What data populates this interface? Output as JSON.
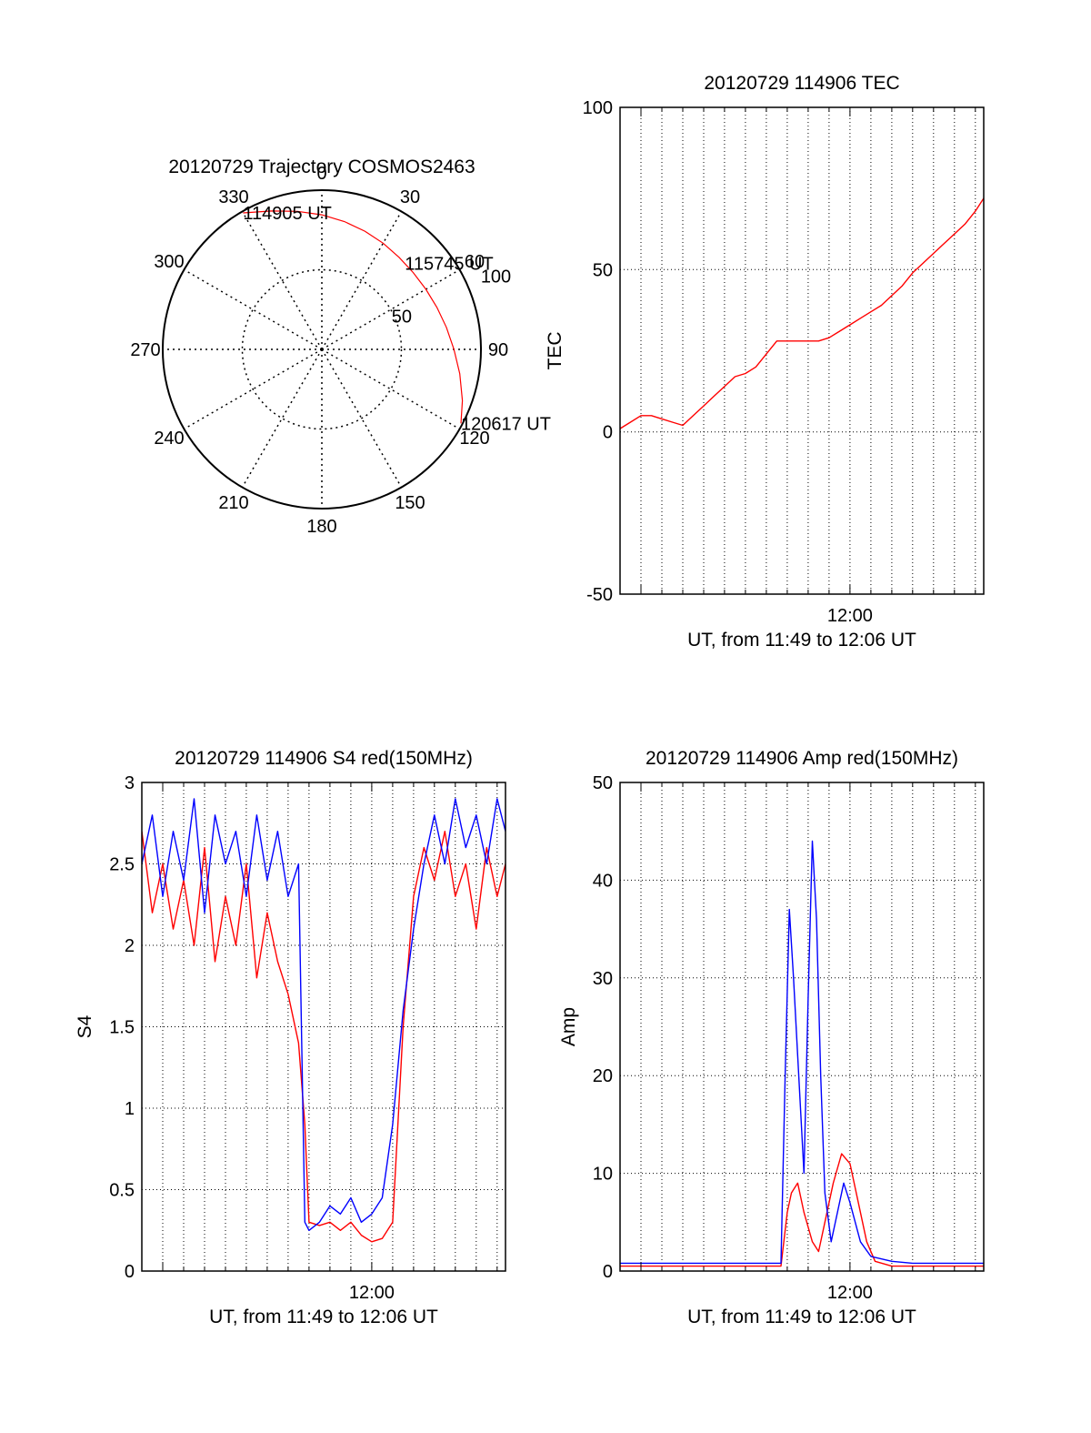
{
  "colors": {
    "red_series": "#ff0000",
    "blue_series": "#0000ff",
    "axes": "#000000",
    "grid": "#000000"
  },
  "chart_data": [
    {
      "id": "polar",
      "type": "scatter",
      "subtype": "polar-trajectory",
      "title": "20120729 Trajectory COSMOS2463",
      "azimuth_labels": [
        "0",
        "30",
        "60",
        "90",
        "120",
        "150",
        "180",
        "210",
        "240",
        "270",
        "300",
        "330"
      ],
      "radius_labels": [
        "50",
        "100"
      ],
      "radius_range": [
        0,
        100
      ],
      "track": {
        "azimuth_deg": [
          -30,
          -20,
          -10,
          0,
          10,
          20,
          30,
          40,
          50,
          60,
          70,
          80,
          90,
          100,
          110,
          118
        ],
        "zenith_deg": [
          99,
          92.5,
          88,
          84.5,
          81.5,
          79,
          77,
          75.5,
          75,
          75.5,
          77,
          79.5,
          83,
          88,
          94,
          99
        ]
      },
      "annotations": [
        {
          "text": "114905 UT",
          "azimuth_deg": -30,
          "zenith_deg": 99
        },
        {
          "text": "115745 UT",
          "azimuth_deg": 44,
          "zenith_deg": 75
        },
        {
          "text": "120617 UT",
          "azimuth_deg": 118,
          "zenith_deg": 99
        }
      ],
      "grid": true
    },
    {
      "id": "tec",
      "type": "line",
      "title": "20120729 114906 TEC",
      "xlabel": "UT, from 11:49 to 12:06 UT",
      "ylabel": "TEC",
      "xlim": [
        709,
        726.4
      ],
      "ylim": [
        -50,
        100
      ],
      "xticks": [
        {
          "value": 720,
          "label": "12:00"
        }
      ],
      "yticks": [
        {
          "value": -50,
          "label": "-50"
        },
        {
          "value": 0,
          "label": "0"
        },
        {
          "value": 50,
          "label": "50"
        },
        {
          "value": 100,
          "label": "100"
        }
      ],
      "grid": true,
      "series": [
        {
          "color": "#ff0000",
          "x": [
            709,
            709.5,
            710,
            710.5,
            711,
            711.5,
            712,
            712.5,
            713,
            713.5,
            714,
            714.5,
            715,
            715.5,
            716,
            716.5,
            717,
            717.5,
            718,
            718.5,
            719,
            719.5,
            720,
            720.5,
            721,
            721.5,
            722,
            722.5,
            723,
            723.5,
            724,
            724.5,
            725,
            725.5,
            726,
            726.4
          ],
          "y": [
            1,
            3,
            5,
            5,
            4,
            3,
            2,
            5,
            8,
            11,
            14,
            17,
            18,
            20,
            24,
            28,
            28,
            28,
            28,
            28,
            29,
            31,
            33,
            35,
            37,
            39,
            42,
            45,
            49,
            52,
            55,
            58,
            61,
            64,
            68,
            72
          ]
        }
      ]
    },
    {
      "id": "s4",
      "type": "line",
      "title": "20120729 114906 S4 red(150MHz)",
      "xlabel": "UT, from 11:49 to 12:06 UT",
      "ylabel": "S4",
      "xlim": [
        709,
        726.4
      ],
      "ylim": [
        0,
        3
      ],
      "xticks": [
        {
          "value": 720,
          "label": "12:00"
        }
      ],
      "yticks": [
        {
          "value": 0,
          "label": "0"
        },
        {
          "value": 0.5,
          "label": "0.5"
        },
        {
          "value": 1,
          "label": "1"
        },
        {
          "value": 1.5,
          "label": "1.5"
        },
        {
          "value": 2,
          "label": "2"
        },
        {
          "value": 2.5,
          "label": "2.5"
        },
        {
          "value": 3,
          "label": "3"
        }
      ],
      "grid": true,
      "series": [
        {
          "color": "#ff0000",
          "x": [
            709,
            709.5,
            710,
            710.5,
            711,
            711.5,
            712,
            712.5,
            713,
            713.5,
            714,
            714.5,
            715,
            715.5,
            716,
            716.5,
            716.8,
            717,
            717.5,
            718,
            718.5,
            719,
            719.5,
            720,
            720.5,
            721,
            721.5,
            722,
            722.5,
            723,
            723.5,
            724,
            724.5,
            725,
            725.5,
            726,
            726.4
          ],
          "y": [
            2.7,
            2.2,
            2.5,
            2.1,
            2.4,
            2.0,
            2.6,
            1.9,
            2.3,
            2.0,
            2.5,
            1.8,
            2.2,
            1.9,
            1.7,
            1.4,
            0.9,
            0.3,
            0.28,
            0.3,
            0.25,
            0.3,
            0.22,
            0.18,
            0.2,
            0.3,
            1.5,
            2.3,
            2.6,
            2.4,
            2.7,
            2.3,
            2.5,
            2.1,
            2.6,
            2.3,
            2.5
          ]
        },
        {
          "color": "#0000ff",
          "x": [
            709,
            709.5,
            710,
            710.5,
            711,
            711.5,
            712,
            712.5,
            713,
            713.5,
            714,
            714.5,
            715,
            715.5,
            716,
            716.5,
            716.8,
            717,
            717.5,
            718,
            718.5,
            719,
            719.5,
            720,
            720.5,
            721,
            721.5,
            722,
            722.5,
            723,
            723.5,
            724,
            724.5,
            725,
            725.5,
            726,
            726.4
          ],
          "y": [
            2.5,
            2.8,
            2.3,
            2.7,
            2.4,
            2.9,
            2.2,
            2.8,
            2.5,
            2.7,
            2.3,
            2.8,
            2.4,
            2.7,
            2.3,
            2.5,
            0.3,
            0.25,
            0.3,
            0.4,
            0.35,
            0.45,
            0.3,
            0.35,
            0.45,
            0.9,
            1.6,
            2.1,
            2.5,
            2.8,
            2.5,
            2.9,
            2.6,
            2.8,
            2.5,
            2.9,
            2.7
          ]
        }
      ]
    },
    {
      "id": "amp",
      "type": "line",
      "title": "20120729 114906 Amp red(150MHz)",
      "xlabel": "UT, from 11:49 to 12:06 UT",
      "ylabel": "Amp",
      "xlim": [
        709,
        726.4
      ],
      "ylim": [
        0,
        50
      ],
      "xticks": [
        {
          "value": 720,
          "label": "12:00"
        }
      ],
      "yticks": [
        {
          "value": 0,
          "label": "0"
        },
        {
          "value": 10,
          "label": "10"
        },
        {
          "value": 20,
          "label": "20"
        },
        {
          "value": 30,
          "label": "30"
        },
        {
          "value": 40,
          "label": "40"
        },
        {
          "value": 50,
          "label": "50"
        }
      ],
      "grid": true,
      "series": [
        {
          "color": "#ff0000",
          "x": [
            709,
            710,
            711,
            712,
            713,
            714,
            715,
            716,
            716.7,
            717,
            717.2,
            717.5,
            717.8,
            718.2,
            718.5,
            718.8,
            719.2,
            719.6,
            720,
            720.4,
            720.8,
            721.2,
            722,
            723,
            724,
            725,
            726,
            726.4
          ],
          "y": [
            0.5,
            0.5,
            0.5,
            0.5,
            0.5,
            0.5,
            0.5,
            0.5,
            0.5,
            6,
            8,
            9,
            6,
            3,
            2,
            5,
            9,
            12,
            11,
            7,
            3,
            1,
            0.5,
            0.5,
            0.5,
            0.5,
            0.5,
            0.5
          ]
        },
        {
          "color": "#0000ff",
          "x": [
            709,
            710,
            711,
            712,
            713,
            714,
            715,
            716,
            716.7,
            716.9,
            717.1,
            717.3,
            717.5,
            717.8,
            718,
            718.2,
            718.4,
            718.6,
            718.8,
            719.1,
            719.4,
            719.7,
            720,
            720.5,
            721,
            722,
            723,
            724,
            725,
            726,
            726.4
          ],
          "y": [
            0.8,
            0.8,
            0.8,
            0.8,
            0.8,
            0.8,
            0.8,
            0.8,
            0.8,
            20,
            37,
            30,
            22,
            10,
            28,
            44,
            36,
            20,
            8,
            3,
            6,
            9,
            7,
            3,
            1.5,
            1,
            0.8,
            0.8,
            0.8,
            0.8,
            0.8
          ]
        }
      ]
    }
  ]
}
